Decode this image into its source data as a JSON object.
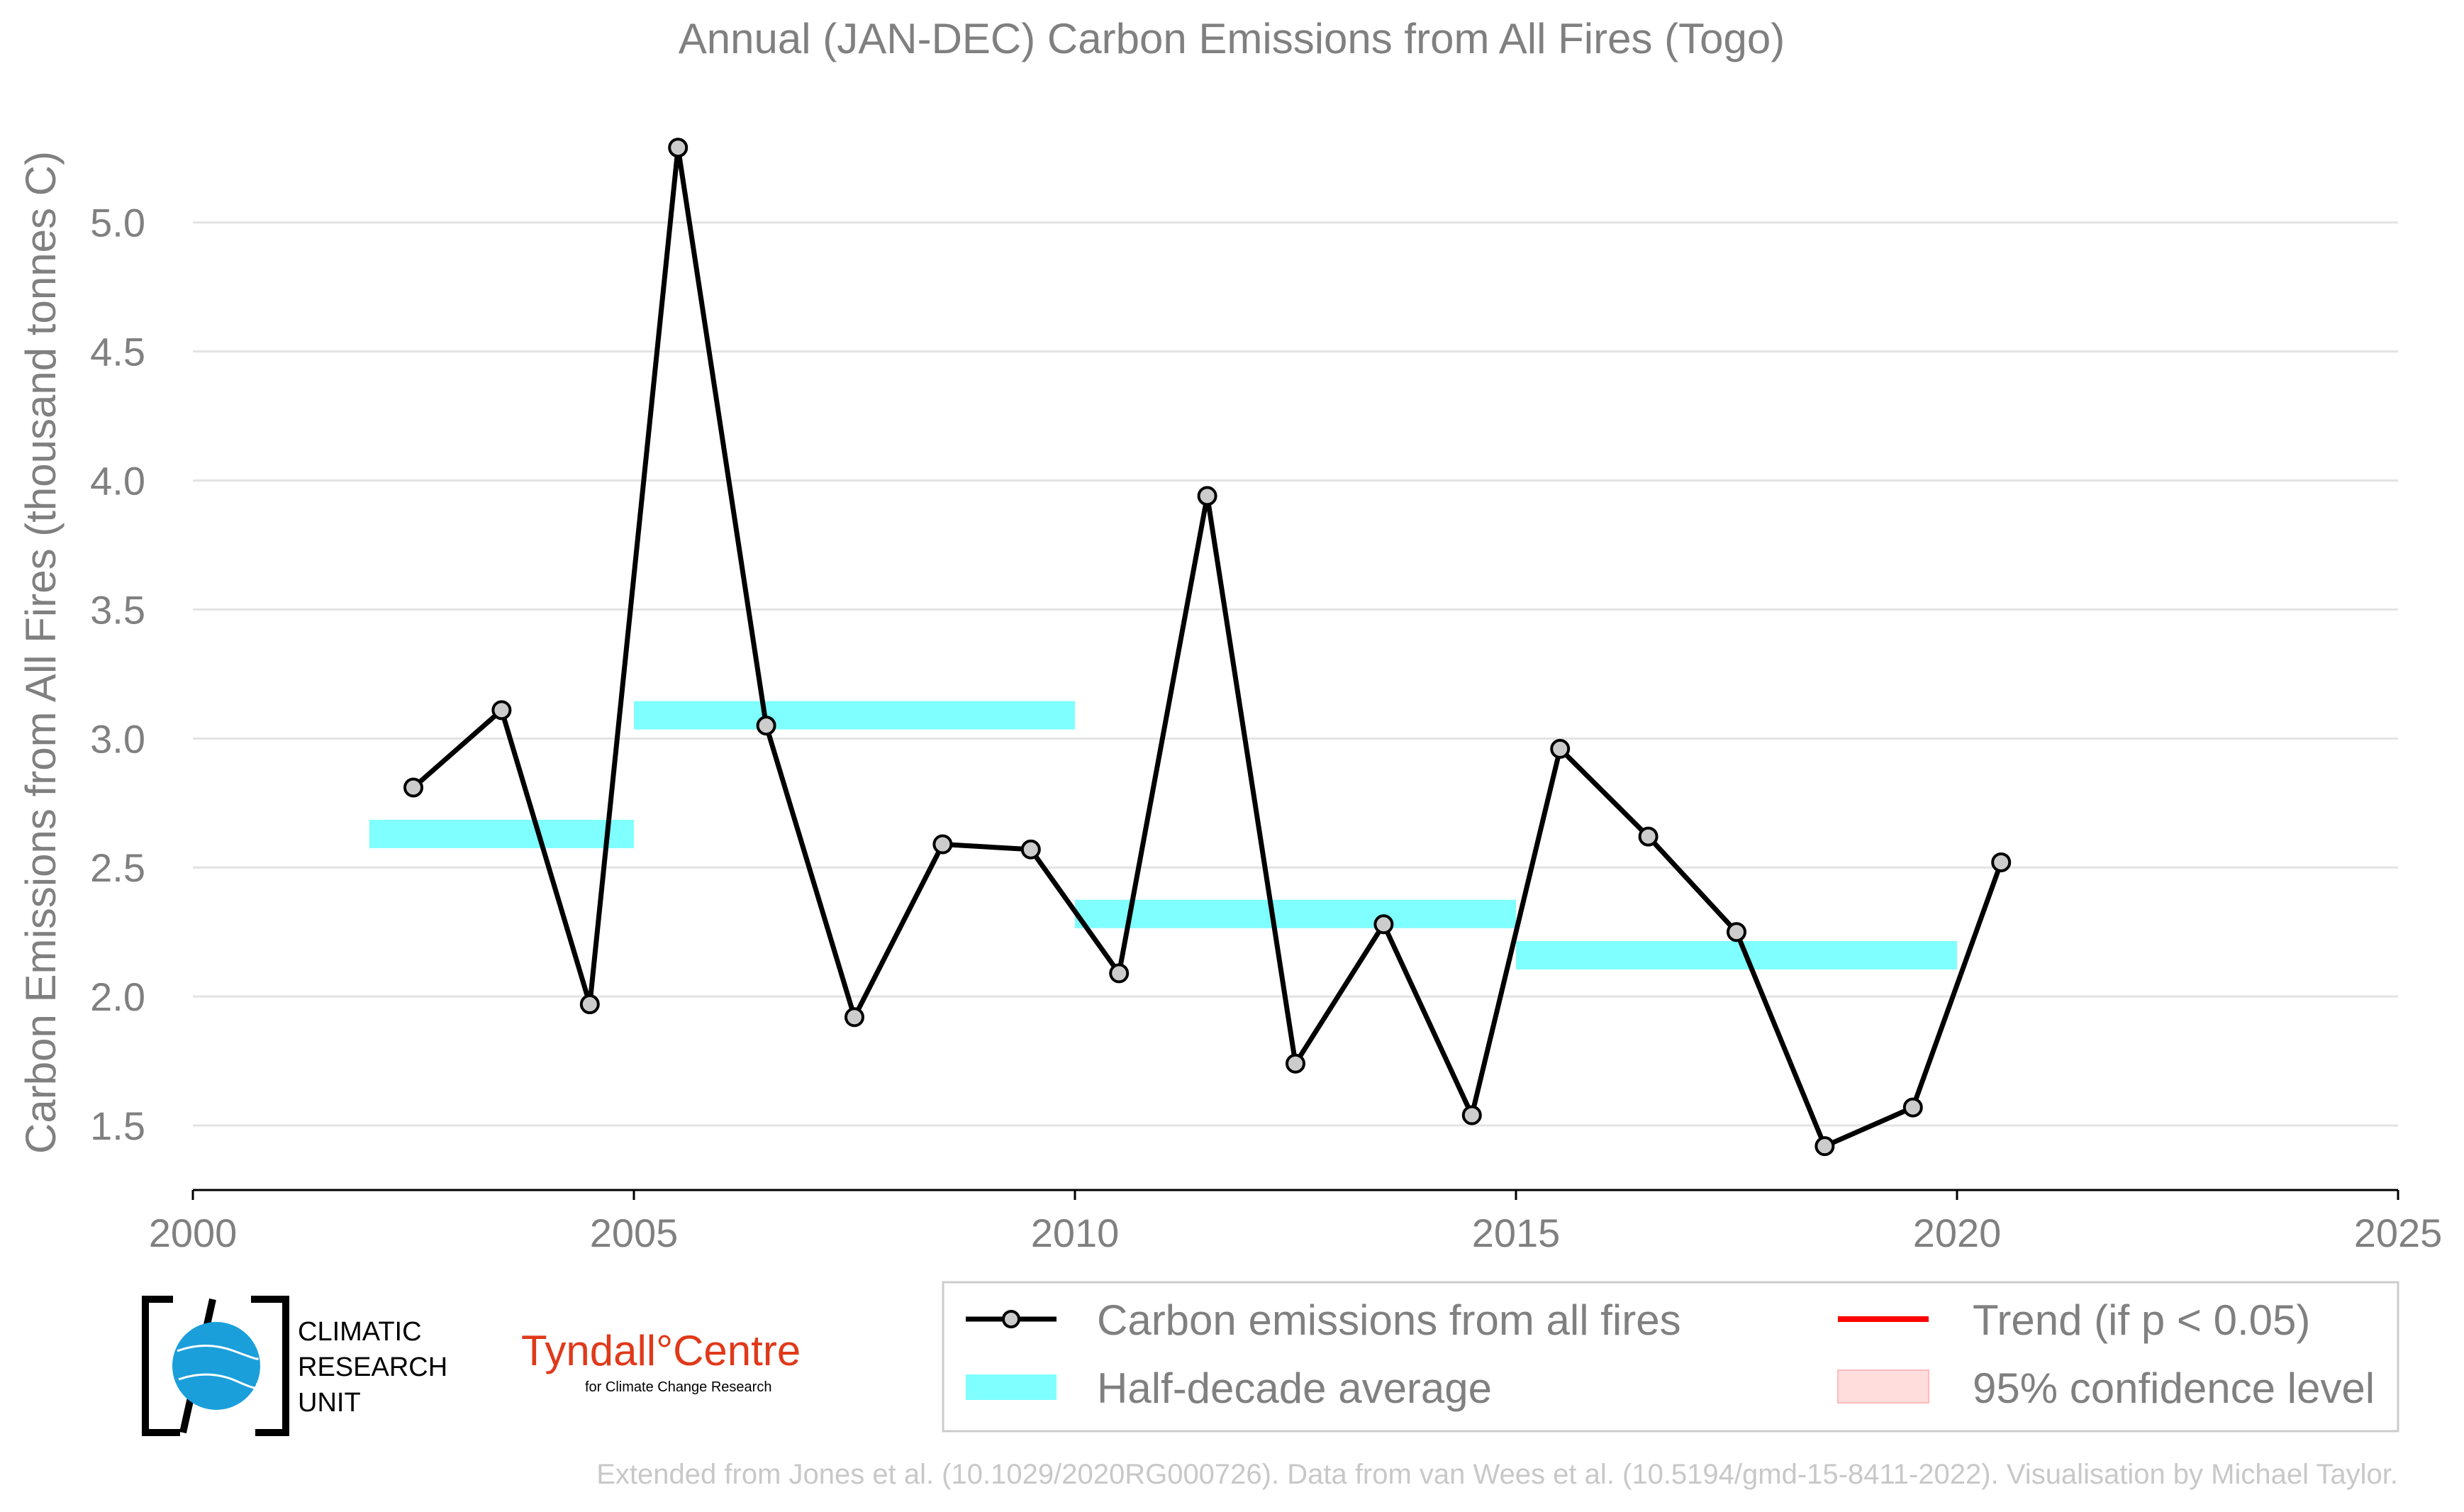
{
  "chart_data": {
    "type": "line",
    "title": "Annual (JAN-DEC) Carbon Emissions from All Fires (Togo)",
    "ylabel": "Carbon Emissions from All Fires (thousand tonnes C)",
    "xlabel": "",
    "xlim": [
      2000,
      2025
    ],
    "ylim": [
      1.25,
      5.45
    ],
    "xticks": [
      "2000",
      "2005",
      "2010",
      "2015",
      "2020",
      "2025"
    ],
    "yticks": [
      "1.5",
      "2.0",
      "2.5",
      "3.0",
      "3.5",
      "4.0",
      "4.5",
      "5.0"
    ],
    "grid": "horizontal",
    "legend_position": "bottom-right",
    "series": [
      {
        "name": "Carbon emissions from all fires",
        "color": "#000000",
        "x": [
          2002.5,
          2003.5,
          2004.5,
          2005.5,
          2006.5,
          2007.5,
          2008.5,
          2009.5,
          2010.5,
          2011.5,
          2012.5,
          2013.5,
          2014.5,
          2015.5,
          2016.5,
          2017.5,
          2018.5,
          2019.5,
          2020.5
        ],
        "values": [
          2.81,
          3.11,
          1.97,
          5.29,
          3.05,
          1.92,
          2.59,
          2.57,
          2.09,
          3.94,
          1.74,
          2.28,
          1.54,
          2.96,
          2.62,
          2.25,
          1.42,
          1.57,
          2.52
        ]
      },
      {
        "name": "Half-decade average",
        "color": "#7fffff",
        "segments": [
          {
            "start": 2002,
            "end": 2005,
            "value": 2.63
          },
          {
            "start": 2005,
            "end": 2010,
            "value": 3.09
          },
          {
            "start": 2010,
            "end": 2015,
            "value": 2.32
          },
          {
            "start": 2015,
            "end": 2020,
            "value": 2.16
          }
        ]
      }
    ],
    "legend": [
      {
        "label": "Carbon emissions from all fires",
        "color": "#000000"
      },
      {
        "label": "Half-decade average",
        "color": "#7fffff"
      },
      {
        "label": "Trend (if p < 0.05)",
        "color": "#ff0000"
      },
      {
        "label": "95% confidence level",
        "color": "#ffdddd"
      }
    ]
  },
  "logos": {
    "cru_line1": "CLIMATIC",
    "cru_line2": "RESEARCH",
    "cru_line3": "UNIT",
    "tyndall_main": "Tyndall°Centre",
    "tyndall_sub": "for Climate Change Research"
  },
  "credit": "Extended from Jones et al. (10.1029/2020RG000726). Data from van Wees et al. (10.5194/gmd-15-8411-2022). Visualisation by Michael Taylor."
}
